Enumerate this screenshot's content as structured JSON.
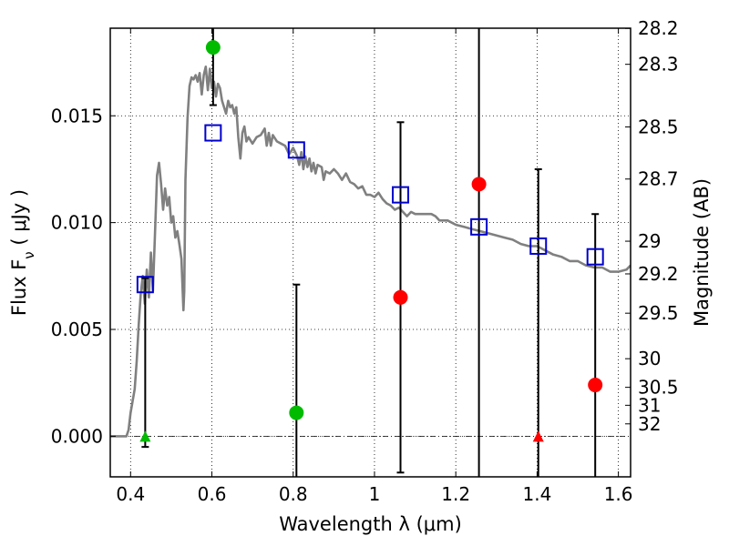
{
  "chart_data": {
    "type": "scatter",
    "xlabel": "Wavelength  λ (μm)",
    "ylabel": "Flux  F_ν  ( μJy )",
    "y2label": "Magnitude (AB)",
    "xlim": [
      0.35,
      1.63
    ],
    "ylim": [
      -0.0019,
      0.0191
    ],
    "grid": true,
    "x_ticks": [
      0.4,
      0.6,
      0.8,
      1.0,
      1.2,
      1.4,
      1.6
    ],
    "x_tick_labels": [
      "0.4",
      "0.6",
      "0.8",
      "1",
      "1.2",
      "1.4",
      "1.6"
    ],
    "y_ticks": [
      0.0,
      0.005,
      0.01,
      0.015
    ],
    "y_tick_labels": [
      "0.000",
      "0.005",
      "0.010",
      "0.015"
    ],
    "mag_ticks": [
      {
        "label": "28.2",
        "flux": 0.01909
      },
      {
        "label": "28.3",
        "flux": 0.01741
      },
      {
        "label": "28.5",
        "flux": 0.01448
      },
      {
        "label": "28.7",
        "flux": 0.01204
      },
      {
        "label": "29",
        "flux": 0.00913
      },
      {
        "label": "29.2",
        "flux": 0.0076
      },
      {
        "label": "29.5",
        "flux": 0.00576
      },
      {
        "label": "30",
        "flux": 0.00363
      },
      {
        "label": "30.5",
        "flux": 0.00229
      },
      {
        "label": "31",
        "flux": 0.00145
      },
      {
        "label": "32",
        "flux": 0.00058
      }
    ],
    "series": [
      {
        "type": "line",
        "color": "#808080",
        "points": [
          [
            0.35,
            0.0
          ],
          [
            0.39,
            0.0
          ],
          [
            0.395,
            0.0003
          ],
          [
            0.4,
            0.0011
          ],
          [
            0.41,
            0.0022
          ],
          [
            0.415,
            0.0035
          ],
          [
            0.42,
            0.0052
          ],
          [
            0.425,
            0.0067
          ],
          [
            0.43,
            0.0075
          ],
          [
            0.435,
            0.0062
          ],
          [
            0.44,
            0.0078
          ],
          [
            0.445,
            0.0065
          ],
          [
            0.45,
            0.0086
          ],
          [
            0.455,
            0.0068
          ],
          [
            0.46,
            0.0095
          ],
          [
            0.465,
            0.0122
          ],
          [
            0.47,
            0.0128
          ],
          [
            0.475,
            0.0118
          ],
          [
            0.48,
            0.0106
          ],
          [
            0.485,
            0.0116
          ],
          [
            0.49,
            0.0108
          ],
          [
            0.495,
            0.0112
          ],
          [
            0.5,
            0.01
          ],
          [
            0.505,
            0.0103
          ],
          [
            0.51,
            0.0093
          ],
          [
            0.515,
            0.0096
          ],
          [
            0.52,
            0.009
          ],
          [
            0.525,
            0.0083
          ],
          [
            0.53,
            0.0059
          ],
          [
            0.532,
            0.0068
          ],
          [
            0.535,
            0.012
          ],
          [
            0.54,
            0.0149
          ],
          [
            0.545,
            0.0164
          ],
          [
            0.55,
            0.0168
          ],
          [
            0.555,
            0.0167
          ],
          [
            0.56,
            0.0169
          ],
          [
            0.565,
            0.0166
          ],
          [
            0.57,
            0.017
          ],
          [
            0.575,
            0.016
          ],
          [
            0.58,
            0.0169
          ],
          [
            0.585,
            0.0173
          ],
          [
            0.59,
            0.0162
          ],
          [
            0.595,
            0.0172
          ],
          [
            0.6,
            0.0163
          ],
          [
            0.605,
            0.0166
          ],
          [
            0.61,
            0.0159
          ],
          [
            0.615,
            0.0165
          ],
          [
            0.62,
            0.0163
          ],
          [
            0.625,
            0.0157
          ],
          [
            0.63,
            0.0154
          ],
          [
            0.635,
            0.0151
          ],
          [
            0.64,
            0.0157
          ],
          [
            0.645,
            0.0154
          ],
          [
            0.65,
            0.0155
          ],
          [
            0.655,
            0.0151
          ],
          [
            0.66,
            0.0154
          ],
          [
            0.665,
            0.014
          ],
          [
            0.67,
            0.013
          ],
          [
            0.675,
            0.0142
          ],
          [
            0.68,
            0.0145
          ],
          [
            0.685,
            0.0138
          ],
          [
            0.69,
            0.014
          ],
          [
            0.7,
            0.0137
          ],
          [
            0.71,
            0.014
          ],
          [
            0.72,
            0.0141
          ],
          [
            0.73,
            0.0144
          ],
          [
            0.735,
            0.0136
          ],
          [
            0.74,
            0.0142
          ],
          [
            0.745,
            0.0136
          ],
          [
            0.75,
            0.0141
          ],
          [
            0.76,
            0.0138
          ],
          [
            0.77,
            0.0137
          ],
          [
            0.78,
            0.0136
          ],
          [
            0.79,
            0.0132
          ],
          [
            0.8,
            0.0135
          ],
          [
            0.81,
            0.0131
          ],
          [
            0.815,
            0.0127
          ],
          [
            0.82,
            0.0133
          ],
          [
            0.825,
            0.0125
          ],
          [
            0.83,
            0.0131
          ],
          [
            0.835,
            0.0126
          ],
          [
            0.84,
            0.013
          ],
          [
            0.845,
            0.0124
          ],
          [
            0.85,
            0.0128
          ],
          [
            0.855,
            0.0123
          ],
          [
            0.86,
            0.0127
          ],
          [
            0.87,
            0.0126
          ],
          [
            0.875,
            0.012
          ],
          [
            0.88,
            0.0124
          ],
          [
            0.89,
            0.0123
          ],
          [
            0.9,
            0.0125
          ],
          [
            0.91,
            0.0123
          ],
          [
            0.92,
            0.012
          ],
          [
            0.93,
            0.0123
          ],
          [
            0.94,
            0.0119
          ],
          [
            0.95,
            0.0118
          ],
          [
            0.96,
            0.0116
          ],
          [
            0.97,
            0.0117
          ],
          [
            0.98,
            0.0113
          ],
          [
            0.99,
            0.0113
          ],
          [
            1.0,
            0.0112
          ],
          [
            1.01,
            0.0114
          ],
          [
            1.02,
            0.0111
          ],
          [
            1.03,
            0.0109
          ],
          [
            1.04,
            0.0108
          ],
          [
            1.05,
            0.0106
          ],
          [
            1.06,
            0.0107
          ],
          [
            1.07,
            0.0105
          ],
          [
            1.08,
            0.0103
          ],
          [
            1.09,
            0.0105
          ],
          [
            1.1,
            0.0104
          ],
          [
            1.12,
            0.0104
          ],
          [
            1.14,
            0.0104
          ],
          [
            1.15,
            0.0103
          ],
          [
            1.16,
            0.0101
          ],
          [
            1.18,
            0.0101
          ],
          [
            1.2,
            0.0099
          ],
          [
            1.22,
            0.0098
          ],
          [
            1.24,
            0.0097
          ],
          [
            1.26,
            0.0096
          ],
          [
            1.28,
            0.0095
          ],
          [
            1.3,
            0.0094
          ],
          [
            1.32,
            0.0093
          ],
          [
            1.34,
            0.0092
          ],
          [
            1.36,
            0.009
          ],
          [
            1.38,
            0.0089
          ],
          [
            1.4,
            0.0089
          ],
          [
            1.42,
            0.0087
          ],
          [
            1.44,
            0.0085
          ],
          [
            1.46,
            0.0084
          ],
          [
            1.48,
            0.0082
          ],
          [
            1.5,
            0.0082
          ],
          [
            1.52,
            0.008
          ],
          [
            1.54,
            0.0079
          ],
          [
            1.56,
            0.0079
          ],
          [
            1.58,
            0.0077
          ],
          [
            1.6,
            0.0077
          ],
          [
            1.62,
            0.0078
          ],
          [
            1.63,
            0.008
          ]
        ]
      },
      {
        "type": "squares",
        "color": "#0000cc",
        "points": [
          [
            0.436,
            0.0071
          ],
          [
            0.603,
            0.0142
          ],
          [
            0.808,
            0.0134
          ],
          [
            1.064,
            0.0113
          ],
          [
            1.257,
            0.0098
          ],
          [
            1.403,
            0.0089
          ],
          [
            1.543,
            0.0084
          ]
        ]
      },
      {
        "type": "circles",
        "color": "#00bb00",
        "points": [
          [
            0.603,
            0.0182
          ],
          [
            0.808,
            0.0011
          ]
        ]
      },
      {
        "type": "circles",
        "color": "#ff0000",
        "points": [
          [
            1.064,
            0.0065
          ],
          [
            1.257,
            0.0118
          ],
          [
            1.543,
            0.0024
          ]
        ]
      },
      {
        "type": "triangles",
        "color": "#00bb00",
        "points": [
          [
            0.436,
            0.0
          ]
        ]
      },
      {
        "type": "triangles",
        "color": "#ff0000",
        "points": [
          [
            1.403,
            0.0
          ]
        ]
      }
    ],
    "errorbars": [
      {
        "x": 0.436,
        "low": -0.0005,
        "high": 0.0074
      },
      {
        "x": 0.603,
        "low": 0.0155,
        "high": 0.0191
      },
      {
        "x": 0.808,
        "low": -0.0019,
        "high": 0.0071
      },
      {
        "x": 1.064,
        "low": -0.0017,
        "high": 0.0147
      },
      {
        "x": 1.257,
        "low": -0.0019,
        "high": 0.0191
      },
      {
        "x": 1.403,
        "low": -0.0019,
        "high": 0.0125
      },
      {
        "x": 1.543,
        "low": -0.0019,
        "high": 0.0104
      }
    ]
  }
}
